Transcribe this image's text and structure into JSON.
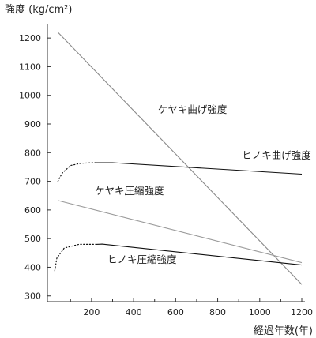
{
  "chart_data": {
    "type": "line",
    "ylabel": "強度 (kg/cm²)",
    "xlabel": "経過年数(年)",
    "xlim": [
      -10,
      1200
    ],
    "ylim": [
      280,
      1250
    ],
    "xticks": [
      200,
      400,
      600,
      800,
      1000,
      1200
    ],
    "yticks": [
      300,
      400,
      500,
      600,
      700,
      800,
      900,
      1000,
      1100,
      1200
    ],
    "grid": false,
    "series": [
      {
        "name": "ケヤキ曲げ強度",
        "color": "#8a8a8a",
        "stroke_width": 1.1,
        "points": [
          [
            40,
            1220
          ],
          [
            1200,
            340
          ]
        ]
      },
      {
        "name": "ヒノキ曲げ強度",
        "color": "#111111",
        "stroke_width": 1.1,
        "points": [
          [
            220,
            765
          ],
          [
            300,
            765
          ],
          [
            1200,
            725
          ]
        ],
        "dotted": [
          [
            40,
            700
          ],
          [
            60,
            728
          ],
          [
            100,
            755
          ],
          [
            150,
            763
          ],
          [
            220,
            765
          ]
        ]
      },
      {
        "name": "ケヤキ圧縮強度",
        "color": "#9a9a9a",
        "stroke_width": 1.1,
        "points": [
          [
            40,
            633
          ],
          [
            1200,
            416
          ]
        ]
      },
      {
        "name": "ヒノキ圧縮強度",
        "color": "#111111",
        "stroke_width": 1.1,
        "points": [
          [
            220,
            480
          ],
          [
            250,
            481
          ],
          [
            1200,
            408
          ]
        ],
        "dotted": [
          [
            25,
            388
          ],
          [
            35,
            432
          ],
          [
            70,
            467
          ],
          [
            140,
            480
          ],
          [
            220,
            480
          ]
        ]
      }
    ],
    "annotations": [
      {
        "text": "ケヤキ曲げ強度",
        "x": 680,
        "y": 938
      },
      {
        "text": "ヒノキ曲げ強度",
        "x": 1080,
        "y": 779
      },
      {
        "text": "ケヤキ圧縮強度",
        "x": 380,
        "y": 655
      },
      {
        "text": "ヒノキ圧縮強度",
        "x": 440,
        "y": 415
      }
    ]
  }
}
